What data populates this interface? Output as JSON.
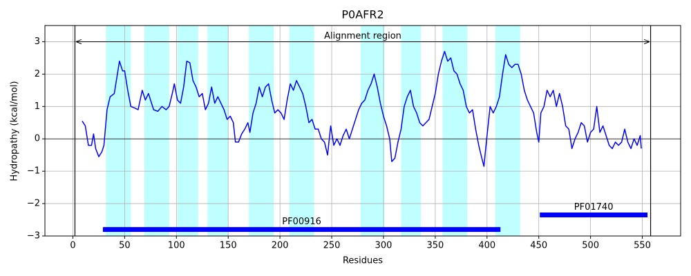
{
  "chart_data": {
    "type": "line",
    "title": "P0AFR2",
    "xlabel": "Residues",
    "ylabel": "Hydropathy (kcal/mol)",
    "xlim": [
      -27,
      587
    ],
    "ylim": [
      -3,
      3.5
    ],
    "xticks": [
      0,
      50,
      100,
      150,
      200,
      250,
      300,
      350,
      400,
      450,
      500,
      550
    ],
    "yticks": [
      {
        "value": -3,
        "label": "−3"
      },
      {
        "value": -2,
        "label": "−2"
      },
      {
        "value": -1,
        "label": "−1"
      },
      0,
      1,
      2,
      3
    ],
    "grid": true,
    "hline": 0,
    "spans": [
      [
        32,
        56
      ],
      [
        69,
        93
      ],
      [
        101,
        121
      ],
      [
        130,
        150
      ],
      [
        170,
        194
      ],
      [
        209,
        233
      ],
      [
        278,
        301
      ],
      [
        317,
        336
      ],
      [
        357,
        381
      ],
      [
        408,
        432
      ]
    ],
    "span_color": "#c0ffff",
    "vlines": [
      2,
      558
    ],
    "annotation": {
      "text": "Alignment region",
      "start": 3,
      "end": 557,
      "y": 3
    },
    "domains": [
      {
        "name": "PF00916",
        "start": 29,
        "end": 413,
        "y": -2.8
      },
      {
        "name": "PF01740",
        "start": 451,
        "end": 555,
        "y": -2.35
      }
    ],
    "domain_color": "#0000ff",
    "x": [
      9,
      12,
      15,
      18,
      20,
      22,
      25,
      28,
      30,
      33,
      36,
      40,
      43,
      45,
      48,
      50,
      53,
      56,
      60,
      63,
      67,
      70,
      73,
      76,
      78,
      82,
      86,
      90,
      93,
      96,
      98,
      101,
      104,
      107,
      110,
      113,
      116,
      119,
      122,
      125,
      128,
      131,
      134,
      137,
      140,
      143,
      146,
      149,
      152,
      155,
      157,
      160,
      163,
      166,
      169,
      171,
      174,
      177,
      180,
      183,
      186,
      189,
      192,
      195,
      198,
      201,
      204,
      207,
      210,
      213,
      216,
      219,
      222,
      225,
      228,
      231,
      234,
      237,
      240,
      243,
      246,
      249,
      252,
      255,
      258,
      261,
      264,
      267,
      270,
      273,
      276,
      279,
      282,
      285,
      288,
      291,
      294,
      297,
      300,
      303,
      306,
      308,
      311,
      314,
      317,
      320,
      323,
      326,
      329,
      332,
      335,
      338,
      341,
      344,
      347,
      350,
      353,
      356,
      359,
      362,
      365,
      368,
      371,
      374,
      377,
      380,
      383,
      386,
      389,
      392,
      395,
      397,
      400,
      403,
      406,
      409,
      412,
      415,
      418,
      421,
      424,
      427,
      430,
      433,
      436,
      439,
      442,
      445,
      448,
      450,
      452,
      455,
      458,
      461,
      464,
      467,
      470,
      473,
      476,
      479,
      482,
      485,
      488,
      491,
      494,
      497,
      500,
      503,
      506,
      509,
      512,
      515,
      518,
      521,
      524,
      527,
      530,
      533,
      536,
      539,
      542,
      545,
      548,
      549
    ],
    "series": [
      {
        "color": "#0000ff",
        "values": [
          0.55,
          0.4,
          -0.2,
          -0.2,
          0.15,
          -0.3,
          -0.55,
          -0.4,
          -0.2,
          0.9,
          1.3,
          1.4,
          2.0,
          2.4,
          2.1,
          2.1,
          1.5,
          1.0,
          0.95,
          0.9,
          1.5,
          1.2,
          1.4,
          1.1,
          0.9,
          0.85,
          1.0,
          0.9,
          1.0,
          1.4,
          1.7,
          1.2,
          1.1,
          1.6,
          2.4,
          2.35,
          1.8,
          1.6,
          1.3,
          1.4,
          0.9,
          1.1,
          1.6,
          1.1,
          1.3,
          1.1,
          0.9,
          0.6,
          0.7,
          0.5,
          -0.1,
          -0.1,
          0.15,
          0.3,
          0.5,
          0.2,
          0.8,
          1.1,
          1.6,
          1.3,
          1.6,
          1.7,
          1.2,
          0.8,
          0.9,
          0.8,
          0.6,
          1.2,
          1.7,
          1.5,
          1.8,
          1.6,
          1.4,
          1.0,
          0.5,
          0.6,
          0.3,
          0.3,
          0.0,
          -0.1,
          -0.5,
          0.4,
          -0.2,
          0.0,
          -0.2,
          0.1,
          0.3,
          0.0,
          0.3,
          0.6,
          0.9,
          1.1,
          1.2,
          1.5,
          1.7,
          2.0,
          1.6,
          1.1,
          0.7,
          0.4,
          0.0,
          -0.7,
          -0.6,
          -0.1,
          0.3,
          1.0,
          1.3,
          1.5,
          1.0,
          0.8,
          0.5,
          0.4,
          0.5,
          0.6,
          1.0,
          1.4,
          2.0,
          2.4,
          2.7,
          2.4,
          2.5,
          2.1,
          2.0,
          1.7,
          1.5,
          1.0,
          0.8,
          0.9,
          0.3,
          -0.2,
          -0.6,
          -0.85,
          0.1,
          1.0,
          0.8,
          1.0,
          1.3,
          2.0,
          2.6,
          2.3,
          2.2,
          2.3,
          2.3,
          2.0,
          1.5,
          1.2,
          1.0,
          0.8,
          0.2,
          -0.1,
          0.8,
          1.0,
          1.5,
          1.3,
          1.5,
          1.0,
          1.4,
          1.0,
          0.4,
          0.3,
          -0.3,
          0.0,
          0.2,
          0.5,
          0.4,
          -0.1,
          0.2,
          0.3,
          1.0,
          0.2,
          0.4,
          0.1,
          -0.2,
          -0.3,
          -0.1,
          -0.2,
          -0.1,
          0.3,
          -0.1,
          -0.3,
          0.0,
          -0.2,
          0.1,
          -0.3
        ]
      }
    ]
  }
}
